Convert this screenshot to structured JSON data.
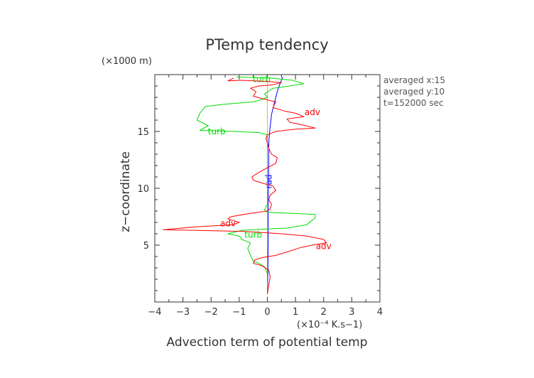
{
  "chart_data": {
    "type": "line",
    "title": "PTemp tendency",
    "xlabel": "Advection term of potential temp",
    "x_unit_label": "(×10⁻⁴ K.s−1)",
    "ylabel": "z−coordinate",
    "y_unit_label": "(×1000 m)",
    "xlim": [
      -4,
      4
    ],
    "ylim": [
      0,
      20
    ],
    "xticks": [
      "−4",
      "−3",
      "−2",
      "−1",
      "0",
      "1",
      "2",
      "3",
      "4"
    ],
    "yticks": [
      "5",
      "10",
      "15"
    ],
    "grid": false,
    "annotations": [
      "averaged  x:15",
      "averaged  y:10",
      "t=152000 sec"
    ],
    "series": [
      {
        "name": "adv",
        "color": "#ff0000",
        "labels": [
          {
            "text": "adv",
            "x": 1.6,
            "z": 16.7
          },
          {
            "text": "adv",
            "x": -1.4,
            "z": 6.9
          },
          {
            "text": "adv",
            "x": 2.0,
            "z": 4.9
          }
        ],
        "points": [
          [
            0.0,
            0.7
          ],
          [
            0.05,
            1.5
          ],
          [
            0.1,
            2.2
          ],
          [
            0.05,
            2.8
          ],
          [
            -0.2,
            3.2
          ],
          [
            -0.5,
            3.4
          ],
          [
            -0.45,
            3.7
          ],
          [
            -0.2,
            3.9
          ],
          [
            0.3,
            4.1
          ],
          [
            0.7,
            4.4
          ],
          [
            1.2,
            4.8
          ],
          [
            1.6,
            5.0
          ],
          [
            2.1,
            5.2
          ],
          [
            2.0,
            5.5
          ],
          [
            1.4,
            5.8
          ],
          [
            0.5,
            6.0
          ],
          [
            -0.8,
            6.2
          ],
          [
            -2.5,
            6.3
          ],
          [
            -3.7,
            6.35
          ],
          [
            -2.6,
            6.6
          ],
          [
            -1.2,
            6.8
          ],
          [
            -1.0,
            7.0
          ],
          [
            -1.4,
            7.3
          ],
          [
            -1.3,
            7.5
          ],
          [
            -0.6,
            7.8
          ],
          [
            0.0,
            8.0
          ],
          [
            0.1,
            8.2
          ],
          [
            0.15,
            8.6
          ],
          [
            0.05,
            9.0
          ],
          [
            0.1,
            9.4
          ],
          [
            0.3,
            9.8
          ],
          [
            0.2,
            10.2
          ],
          [
            -0.1,
            10.4
          ],
          [
            -0.5,
            10.7
          ],
          [
            -0.55,
            11.0
          ],
          [
            -0.3,
            11.4
          ],
          [
            0.0,
            11.8
          ],
          [
            0.3,
            12.2
          ],
          [
            0.35,
            12.7
          ],
          [
            0.15,
            13.0
          ],
          [
            0.05,
            13.5
          ],
          [
            0.0,
            14.0
          ],
          [
            -0.05,
            14.4
          ],
          [
            0.0,
            14.7
          ],
          [
            0.3,
            15.0
          ],
          [
            1.0,
            15.2
          ],
          [
            1.7,
            15.3
          ],
          [
            1.2,
            15.6
          ],
          [
            0.8,
            15.8
          ],
          [
            0.7,
            16.1
          ],
          [
            1.3,
            16.3
          ],
          [
            1.0,
            16.6
          ],
          [
            0.6,
            16.8
          ],
          [
            0.2,
            17.1
          ],
          [
            0.3,
            17.6
          ],
          [
            -0.2,
            17.9
          ],
          [
            -0.5,
            18.1
          ],
          [
            -0.4,
            18.5
          ],
          [
            -0.6,
            18.8
          ],
          [
            -0.3,
            19.0
          ],
          [
            0.2,
            19.1
          ],
          [
            0.5,
            19.3
          ],
          [
            0.0,
            19.4
          ],
          [
            -0.9,
            19.5
          ],
          [
            -1.4,
            19.45
          ],
          [
            -1.2,
            19.7
          ]
        ]
      },
      {
        "name": "turb",
        "color": "#00dd00",
        "labels": [
          {
            "text": "turb",
            "x": -1.8,
            "z": 15.0
          },
          {
            "text": "turb",
            "x": -0.5,
            "z": 5.9
          },
          {
            "text": "turb",
            "x": -0.2,
            "z": 19.6
          }
        ],
        "points": [
          [
            0.0,
            0.7
          ],
          [
            0.0,
            1.5
          ],
          [
            0.0,
            2.5
          ],
          [
            -0.1,
            3.1
          ],
          [
            -0.3,
            3.4
          ],
          [
            -0.5,
            3.6
          ],
          [
            -0.6,
            4.1
          ],
          [
            -0.7,
            4.7
          ],
          [
            -0.6,
            5.2
          ],
          [
            -0.9,
            5.5
          ],
          [
            -1.0,
            5.8
          ],
          [
            -1.4,
            6.0
          ],
          [
            -0.9,
            6.3
          ],
          [
            -0.2,
            6.4
          ],
          [
            0.7,
            6.5
          ],
          [
            1.4,
            6.8
          ],
          [
            1.7,
            7.4
          ],
          [
            1.7,
            7.7
          ],
          [
            0.0,
            7.9
          ],
          [
            -0.1,
            8.1
          ],
          [
            0.0,
            8.6
          ],
          [
            0.0,
            9.5
          ],
          [
            0.0,
            11.0
          ],
          [
            0.0,
            12.5
          ],
          [
            0.0,
            13.5
          ],
          [
            0.0,
            14.2
          ],
          [
            0.0,
            14.7
          ],
          [
            -0.3,
            14.9
          ],
          [
            -1.2,
            15.0
          ],
          [
            -2.4,
            15.1
          ],
          [
            -2.1,
            15.5
          ],
          [
            -2.5,
            16.0
          ],
          [
            -2.4,
            16.6
          ],
          [
            -2.2,
            17.2
          ],
          [
            -1.5,
            17.4
          ],
          [
            -0.5,
            17.6
          ],
          [
            -0.2,
            17.8
          ],
          [
            0.0,
            18.0
          ],
          [
            -0.1,
            18.3
          ],
          [
            0.2,
            18.8
          ],
          [
            0.8,
            19.0
          ],
          [
            1.3,
            19.2
          ],
          [
            0.9,
            19.5
          ],
          [
            0.1,
            19.7
          ],
          [
            -0.6,
            19.75
          ],
          [
            -1.1,
            19.8
          ]
        ]
      },
      {
        "name": "rad",
        "color": "#0000ff",
        "labels": [
          {
            "text": "rad",
            "x": 0.05,
            "z": 10.6
          }
        ],
        "points": [
          [
            0.0,
            0.7
          ],
          [
            0.02,
            3.0
          ],
          [
            0.03,
            6.0
          ],
          [
            0.03,
            8.0
          ],
          [
            0.04,
            10.0
          ],
          [
            0.05,
            12.0
          ],
          [
            0.05,
            14.0
          ],
          [
            0.08,
            15.0
          ],
          [
            0.15,
            16.5
          ],
          [
            0.25,
            17.5
          ],
          [
            0.35,
            18.5
          ],
          [
            0.45,
            19.2
          ],
          [
            0.55,
            19.8
          ]
        ]
      },
      {
        "name": "",
        "color": "#ffaa33",
        "labels": [],
        "points": [
          [
            0.0,
            0.7
          ],
          [
            0.0,
            5.0
          ],
          [
            0.0,
            10.0
          ],
          [
            0.0,
            14.0
          ],
          [
            0.0,
            16.0
          ],
          [
            0.0,
            18.0
          ],
          [
            0.0,
            19.8
          ]
        ]
      }
    ]
  }
}
